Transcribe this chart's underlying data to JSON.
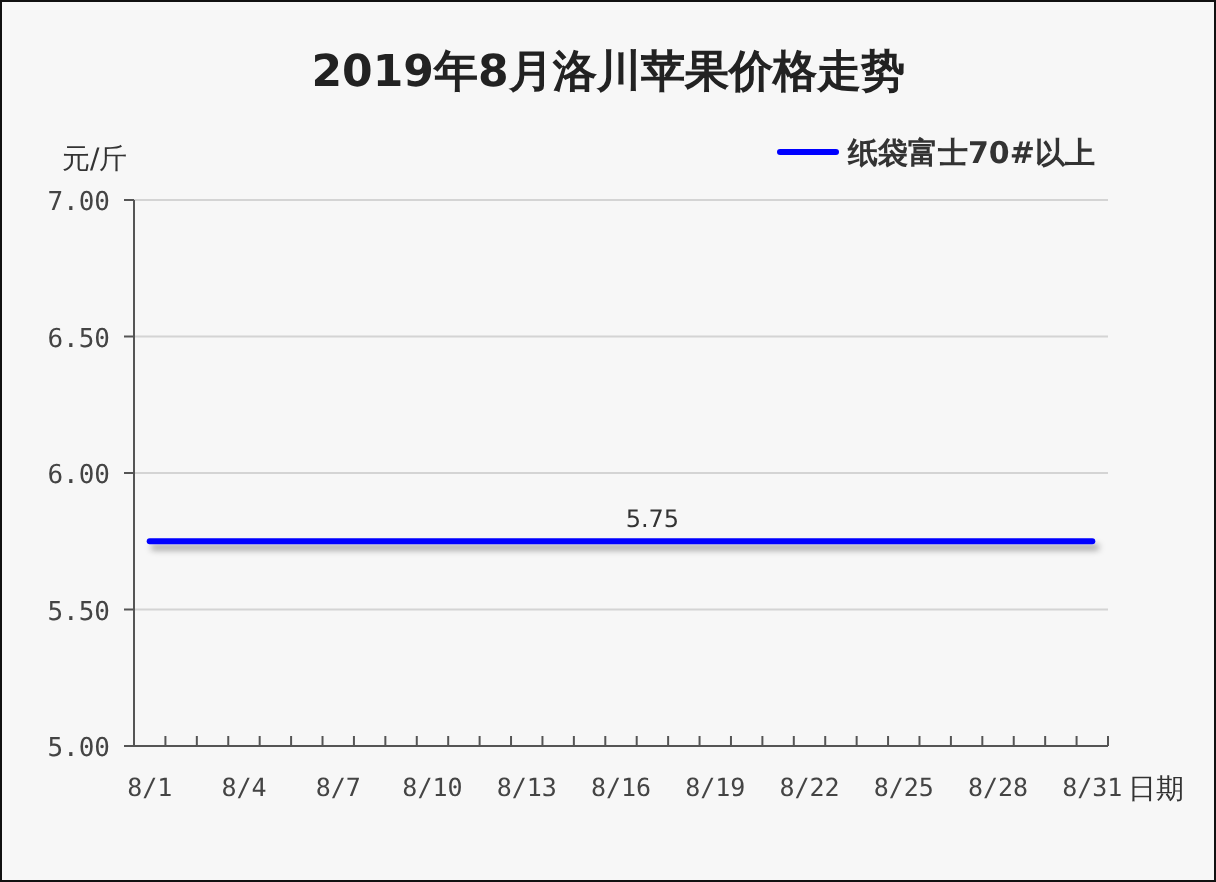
{
  "chart_data": {
    "type": "line",
    "title": "2019年8月洛川苹果价格走势",
    "ylabel": "元/斤",
    "xlabel": "日期",
    "categories": [
      "8/1",
      null,
      null,
      "8/4",
      null,
      null,
      "8/7",
      null,
      null,
      "8/10",
      null,
      null,
      "8/13",
      null,
      null,
      "8/16",
      null,
      null,
      "8/19",
      null,
      null,
      "8/22",
      null,
      null,
      "8/25",
      null,
      null,
      "8/28",
      null,
      null,
      "8/31"
    ],
    "series": [
      {
        "name": "纸袋富士70#以上",
        "color": "#0000ff",
        "values": [
          5.75,
          5.75,
          5.75,
          5.75,
          5.75,
          5.75,
          5.75,
          5.75,
          5.75,
          5.75,
          5.75,
          5.75,
          5.75,
          5.75,
          5.75,
          5.75,
          5.75,
          5.75,
          5.75,
          5.75,
          5.75,
          5.75,
          5.75,
          5.75,
          5.75,
          5.75,
          5.75,
          5.75,
          5.75,
          5.75,
          5.75
        ],
        "value_labels": [
          null,
          null,
          null,
          null,
          null,
          null,
          null,
          null,
          null,
          null,
          null,
          null,
          null,
          null,
          null,
          null,
          "5.75",
          null,
          null,
          null,
          null,
          null,
          null,
          null,
          null,
          null,
          null,
          null,
          null,
          null,
          null
        ]
      }
    ],
    "ylim": [
      5,
      7
    ],
    "yticks": [
      {
        "value": 5,
        "label": "5.00"
      },
      {
        "value": 5.5,
        "label": "5.50"
      },
      {
        "value": 6,
        "label": "6.00"
      },
      {
        "value": 6.5,
        "label": "6.50"
      },
      {
        "value": 7,
        "label": "7.00"
      }
    ],
    "grid": "y",
    "legend": "top right"
  }
}
